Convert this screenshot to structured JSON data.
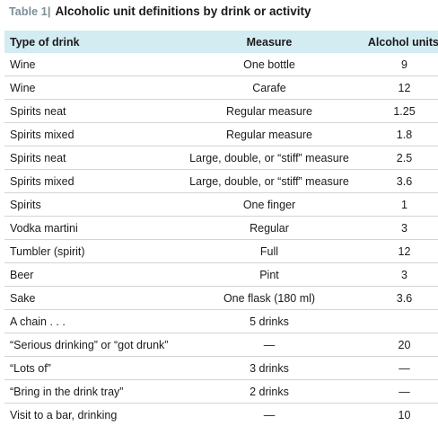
{
  "title": {
    "label": "Table 1",
    "separator": "|",
    "text": "Alcoholic unit definitions by drink or activity"
  },
  "table": {
    "headers": [
      "Type of drink",
      "Measure",
      "Alcohol units"
    ],
    "rows": [
      [
        "Wine",
        "One bottle",
        "9"
      ],
      [
        "Wine",
        "Carafe",
        "12"
      ],
      [
        "Spirits neat",
        "Regular measure",
        "1.25"
      ],
      [
        "Spirits mixed",
        "Regular measure",
        "1.8"
      ],
      [
        "Spirits neat",
        "Large, double, or “stiff” measure",
        "2.5"
      ],
      [
        "Spirits mixed",
        "Large, double, or “stiff” measure",
        "3.6"
      ],
      [
        "Spirits",
        "One finger",
        "1"
      ],
      [
        "Vodka martini",
        "Regular",
        "3"
      ],
      [
        "Tumbler (spirit)",
        "Full",
        "12"
      ],
      [
        "Beer",
        "Pint",
        "3"
      ],
      [
        "Sake",
        "One flask (180 ml)",
        "3.6"
      ],
      [
        "A chain . . .",
        "5 drinks",
        ""
      ],
      [
        "“Serious drinking” or “got drunk”",
        "—",
        "20"
      ],
      [
        "“Lots of”",
        "3 drinks",
        "—"
      ],
      [
        "“Bring in the drink tray”",
        "2 drinks",
        "—"
      ],
      [
        "Visit to a bar, drinking",
        "—",
        "10"
      ]
    ]
  },
  "colors": {
    "header_background": "#d3ecf2",
    "table_label": "#7d8e96",
    "row_divider": "#d4d4d4"
  }
}
